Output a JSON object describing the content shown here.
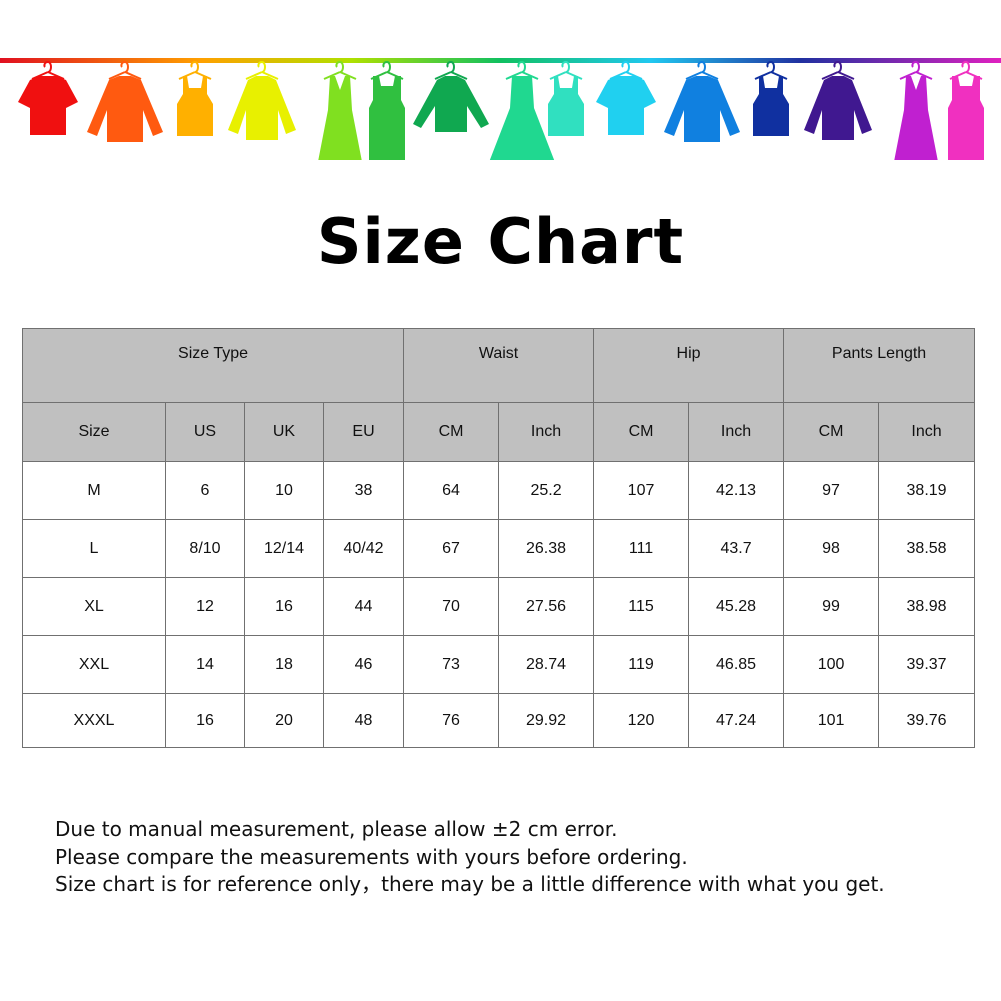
{
  "banner": {
    "icon": "clothes-on-hanger-rail",
    "items": [
      {
        "type": "tshirt",
        "color": "#f01010"
      },
      {
        "type": "shirt",
        "color": "#ff5a10"
      },
      {
        "type": "tank",
        "color": "#ffb000"
      },
      {
        "type": "cardigan",
        "color": "#e8f000"
      },
      {
        "type": "dress",
        "color": "#80e020"
      },
      {
        "type": "belted-dress",
        "color": "#30c040"
      },
      {
        "type": "sweater",
        "color": "#10a850"
      },
      {
        "type": "flare-dress",
        "color": "#20d890"
      },
      {
        "type": "tank",
        "color": "#30e0c0"
      },
      {
        "type": "tshirt",
        "color": "#20d0f0"
      },
      {
        "type": "shirt",
        "color": "#1080e0"
      },
      {
        "type": "tank",
        "color": "#1030a0"
      },
      {
        "type": "cardigan",
        "color": "#401890"
      },
      {
        "type": "dress",
        "color": "#c020d0"
      },
      {
        "type": "belted-dress",
        "color": "#f030c0"
      }
    ]
  },
  "title": "Size Chart",
  "table": {
    "groups": [
      "Size Type",
      "Waist",
      "Hip",
      "Pants Length"
    ],
    "columns": [
      "Size",
      "US",
      "UK",
      "EU",
      "CM",
      "Inch",
      "CM",
      "Inch",
      "CM",
      "Inch"
    ],
    "rows": [
      [
        "M",
        "6",
        "10",
        "38",
        "64",
        "25.2",
        "107",
        "42.13",
        "97",
        "38.19"
      ],
      [
        "L",
        "8/10",
        "12/14",
        "40/42",
        "67",
        "26.38",
        "111",
        "43.7",
        "98",
        "38.58"
      ],
      [
        "XL",
        "12",
        "16",
        "44",
        "70",
        "27.56",
        "115",
        "45.28",
        "99",
        "38.98"
      ],
      [
        "XXL",
        "14",
        "18",
        "46",
        "73",
        "28.74",
        "119",
        "46.85",
        "100",
        "39.37"
      ],
      [
        "XXXL",
        "16",
        "20",
        "48",
        "76",
        "29.92",
        "120",
        "47.24",
        "101",
        "39.76"
      ]
    ],
    "header_color": "#c0c0c0",
    "border_color": "#707070"
  },
  "notes": [
    "Due to manual measurement, please allow ±2 cm error.",
    "Please compare the measurements with yours before ordering.",
    "Size chart is for reference only，there may be a little difference with what you get."
  ]
}
